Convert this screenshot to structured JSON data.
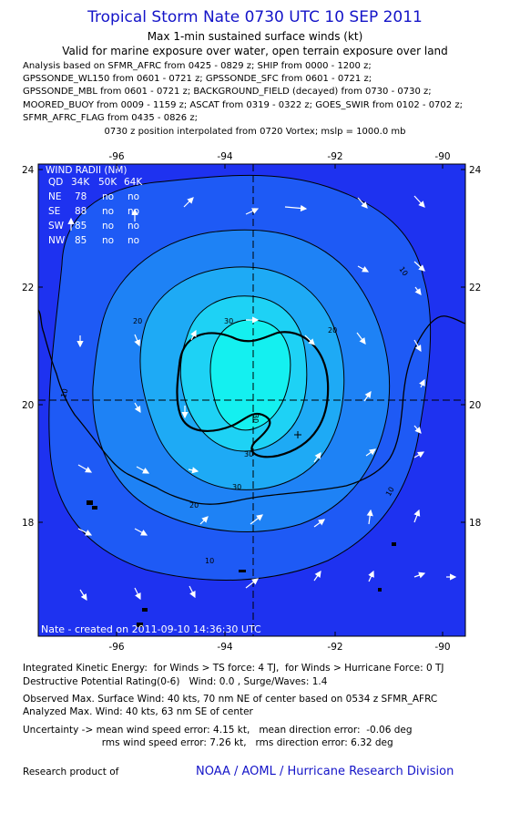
{
  "title": "Tropical Storm Nate 0730 UTC 10 SEP 2011",
  "subtitle1": "Max 1-min sustained surface winds (kt)",
  "subtitle2": "Valid for marine exposure over water, open terrain exposure over land",
  "analysis_lines": [
    "Analysis based on SFMR_AFRC from 0425 - 0829 z; SHIP from 0000 - 1200 z;",
    "GPSSONDE_WL150 from 0601 - 0721 z; GPSSONDE_SFC from 0601 - 0721 z;",
    "GPSSONDE_MBL from 0601 - 0721 z; BACKGROUND_FIELD (decayed) from 0730 - 0730 z;",
    "MOORED_BUOY from 0009 - 1159 z; ASCAT from 0319 - 0322 z; GOES_SWIR from 0102 - 0702 z;",
    "SFMR_AFRC_FLAG from 0435 - 0826 z;"
  ],
  "position_note": "0730 z position interpolated from 0720 Vortex; mslp = 1000.0 mb",
  "map": {
    "lon_ticks_top": [
      "-96",
      "-94",
      "-92",
      "-90"
    ],
    "lon_ticks_bottom": [
      "-96",
      "-94",
      "-92",
      "-90"
    ],
    "lat_ticks_left": [
      "24",
      "22",
      "20",
      "18"
    ],
    "lat_ticks_right": [
      "24",
      "22",
      "20",
      "18"
    ],
    "contour_labels": [
      "10",
      "10",
      "10",
      "20",
      "20",
      "20",
      "30",
      "30",
      "30",
      "30",
      "10"
    ],
    "wind_radii": {
      "title": "WIND RADII (NM)",
      "header": [
        "QD",
        "34K",
        "50K",
        "64K"
      ],
      "rows": [
        [
          "NE",
          "78",
          "no",
          "no"
        ],
        [
          "SE",
          "88",
          "no",
          "no"
        ],
        [
          "SW",
          "85",
          "no",
          "no"
        ],
        [
          "NW",
          "85",
          "no",
          "no"
        ]
      ]
    },
    "credit_line": "Nate  - created on 2011-09-10 14:36:30 UTC",
    "colors": {
      "bg": "#1e32f0",
      "c10": "#1e5af5",
      "c20": "#1e82f5",
      "c30": "#1eaaf5",
      "c40": "#1ed2f5",
      "c50": "#14f0f0",
      "center": "#1e46d2"
    }
  },
  "footer": {
    "ike": "Integrated Kinetic Energy:  for Winds > TS force: 4 TJ,  for Winds > Hurricane Force: 0 TJ",
    "dpr": "Destructive Potential Rating(0-6)   Wind: 0.0 , Surge/Waves: 1.4",
    "observed": "Observed Max. Surface Wind: 40 kts, 70 nm NE of center based on 0534 z SFMR_AFRC",
    "analyzed": "Analyzed Max. Wind: 40 kts, 63 nm SE of center",
    "uncert1": "Uncertainty -> mean wind speed error: 4.15 kt,   mean direction error:  -0.06 deg",
    "uncert2": "                          rms wind speed error: 7.26 kt,   rms direction error: 6.32 deg",
    "research": "Research product of",
    "credit": "NOAA / AOML / Hurricane Research Division"
  }
}
